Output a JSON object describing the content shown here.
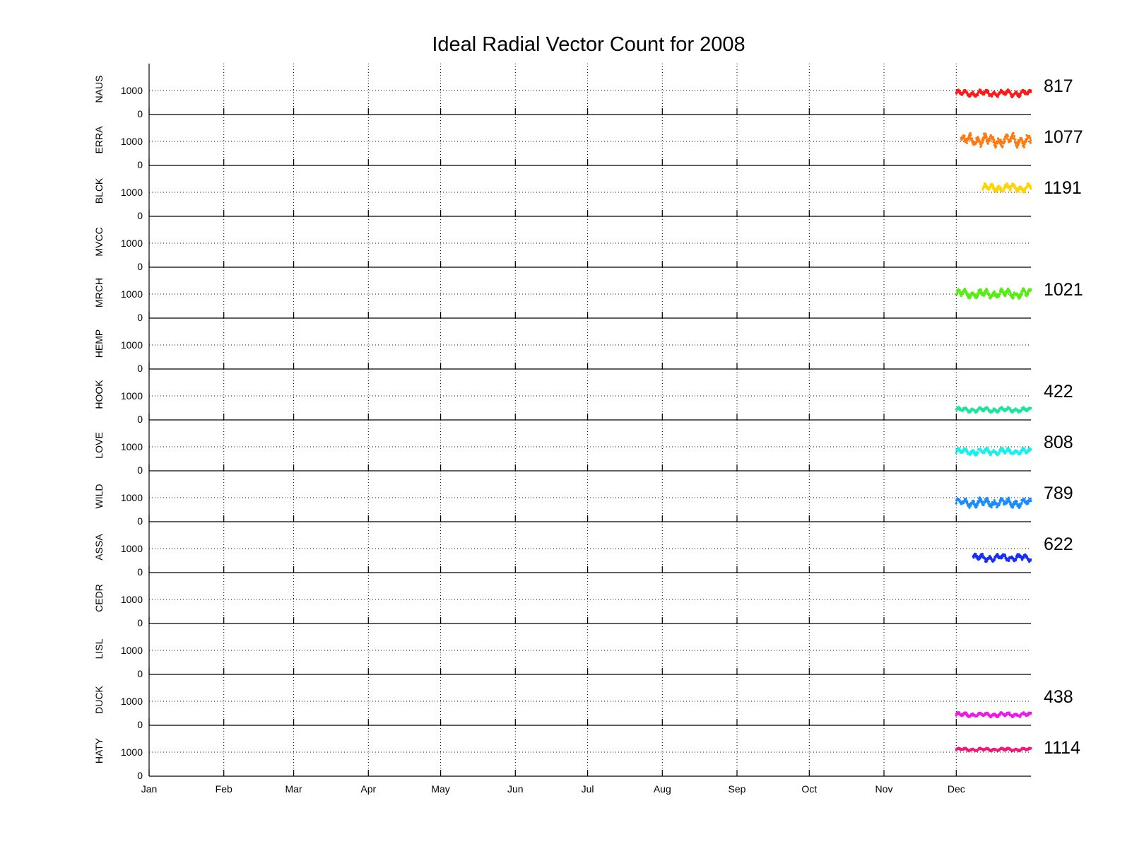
{
  "chart_data": {
    "type": "scatter",
    "title": "Ideal Radial Vector Count for 2008",
    "x_ticks": [
      "Jan",
      "Feb",
      "Mar",
      "Apr",
      "May",
      "Jun",
      "Jul",
      "Aug",
      "Sep",
      "Oct",
      "Nov",
      "Dec"
    ],
    "x_range_days": [
      0,
      366
    ],
    "y_ticks": [
      "0",
      "1000"
    ],
    "ylim": [
      0,
      2000
    ],
    "grid": true,
    "data_window_days": [
      335,
      366
    ],
    "series": [
      {
        "name": "NAUS",
        "color": "#ff1a1a",
        "label": "817",
        "data_start_day": 335,
        "level": 880,
        "amp": 150
      },
      {
        "name": "ERRA",
        "color": "#ff7a10",
        "label": "1077",
        "data_start_day": 337,
        "level": 1050,
        "amp": 280
      },
      {
        "name": "BLCK",
        "color": "#ffd400",
        "label": "1191",
        "data_start_day": 346,
        "level": 1180,
        "amp": 180
      },
      {
        "name": "MVCC",
        "color": "#000000",
        "label": "",
        "data_start_day": null,
        "level": 0,
        "amp": 0
      },
      {
        "name": "MRCH",
        "color": "#55ee11",
        "label": "1021",
        "data_start_day": 335,
        "level": 1020,
        "amp": 200
      },
      {
        "name": "HEMP",
        "color": "#000000",
        "label": "",
        "data_start_day": null,
        "level": 0,
        "amp": 0
      },
      {
        "name": "HOOK",
        "color": "#19e69a",
        "label": "422",
        "data_start_day": 335,
        "level": 420,
        "amp": 110
      },
      {
        "name": "LOVE",
        "color": "#19f0f0",
        "label": "808",
        "data_start_day": 335,
        "level": 800,
        "amp": 150
      },
      {
        "name": "WILD",
        "color": "#1a8cff",
        "label": "789",
        "data_start_day": 335,
        "level": 790,
        "amp": 200
      },
      {
        "name": "ASSA",
        "color": "#1a2ef5",
        "label": "622",
        "data_start_day": 342,
        "level": 620,
        "amp": 160
      },
      {
        "name": "CEDR",
        "color": "#000000",
        "label": "",
        "data_start_day": null,
        "level": 0,
        "amp": 0
      },
      {
        "name": "LISL",
        "color": "#000000",
        "label": "",
        "data_start_day": null,
        "level": 0,
        "amp": 0
      },
      {
        "name": "DUCK",
        "color": "#f019e6",
        "label": "438",
        "data_start_day": 335,
        "level": 440,
        "amp": 100
      },
      {
        "name": "HATY",
        "color": "#f0197a",
        "label": "1114",
        "data_start_day": 335,
        "level": 1110,
        "amp": 70
      }
    ]
  }
}
